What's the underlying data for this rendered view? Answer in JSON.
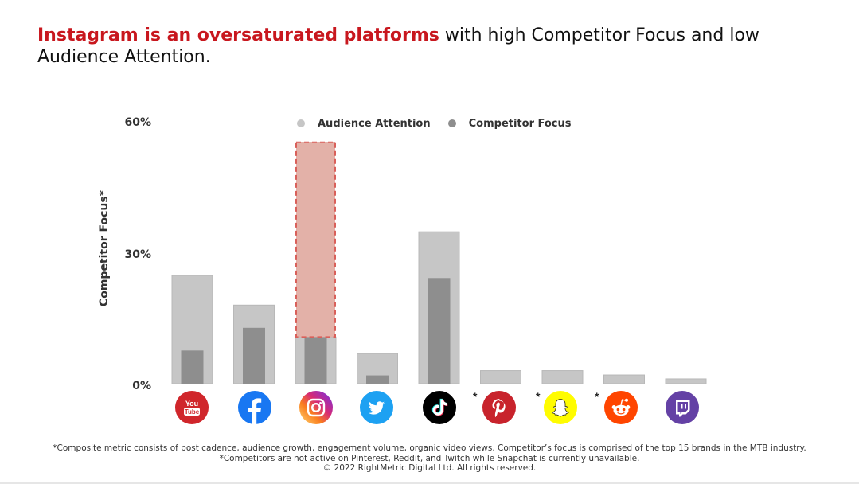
{
  "headline": {
    "highlight": "Instagram is an oversaturated platforms",
    "rest": " with high Competitor Focus and low Audience Attention."
  },
  "colors": {
    "highlight": "#c8171e",
    "audience_bar": "#c6c6c6",
    "competitor_bar": "#8e8e8e",
    "instagram_highlight_fill": "#e3b1a8",
    "instagram_highlight_border": "#d9605a"
  },
  "chart_data": {
    "type": "bar",
    "title": "",
    "ylabel": "Competitor Focus*",
    "xlabel": "",
    "ylim": [
      0,
      60
    ],
    "yticks": [
      "0%",
      "30%",
      "60%"
    ],
    "legend_position": "top-center",
    "categories": [
      "YouTube",
      "Facebook",
      "Instagram",
      "Twitter",
      "TikTok",
      "Pinterest",
      "Snapchat",
      "Reddit",
      "Twitch"
    ],
    "series": [
      {
        "name": "Audience Attention",
        "values": [
          24.8,
          18.0,
          10.7,
          6.9,
          34.8,
          3.0,
          3.0,
          2.0,
          1.1
        ]
      },
      {
        "name": "Competitor Focus",
        "values": [
          7.6,
          12.8,
          10.7,
          1.9,
          24.2,
          0,
          0,
          0,
          0
        ]
      }
    ],
    "annotations": [
      {
        "category": "Instagram",
        "type": "highlight-box",
        "from": 10.7,
        "to": 55.3
      }
    ],
    "icons": [
      {
        "name": "youtube-icon",
        "label": "You Tube",
        "color": "#d0262b",
        "starred": false
      },
      {
        "name": "facebook-icon",
        "label": "",
        "color": "#1877f2",
        "starred": false
      },
      {
        "name": "instagram-icon",
        "label": "",
        "color": "#d62976",
        "starred": false
      },
      {
        "name": "twitter-icon",
        "label": "",
        "color": "#1da1f2",
        "starred": false
      },
      {
        "name": "tiktok-icon",
        "label": "",
        "color": "#000000",
        "starred": false
      },
      {
        "name": "pinterest-icon",
        "label": "",
        "color": "#c8232c",
        "starred": true
      },
      {
        "name": "snapchat-icon",
        "label": "",
        "color": "#fffc00",
        "starred": true
      },
      {
        "name": "reddit-icon",
        "label": "",
        "color": "#ff4500",
        "starred": true
      },
      {
        "name": "twitch-icon",
        "label": "",
        "color": "#6441a5",
        "starred": false
      }
    ],
    "star_mark": "*"
  },
  "footer": {
    "line1": "*Composite metric consists of post cadence, audience growth, engagement volume, organic video views. Competitor’s focus is comprised of the top 15 brands in the MTB industry.",
    "line2": "*Competitors are not active on Pinterest, Reddit, and Twitch while Snapchat is currently unavailable.",
    "line3": "© 2022 RightMetric Digital Ltd. All rights reserved."
  }
}
